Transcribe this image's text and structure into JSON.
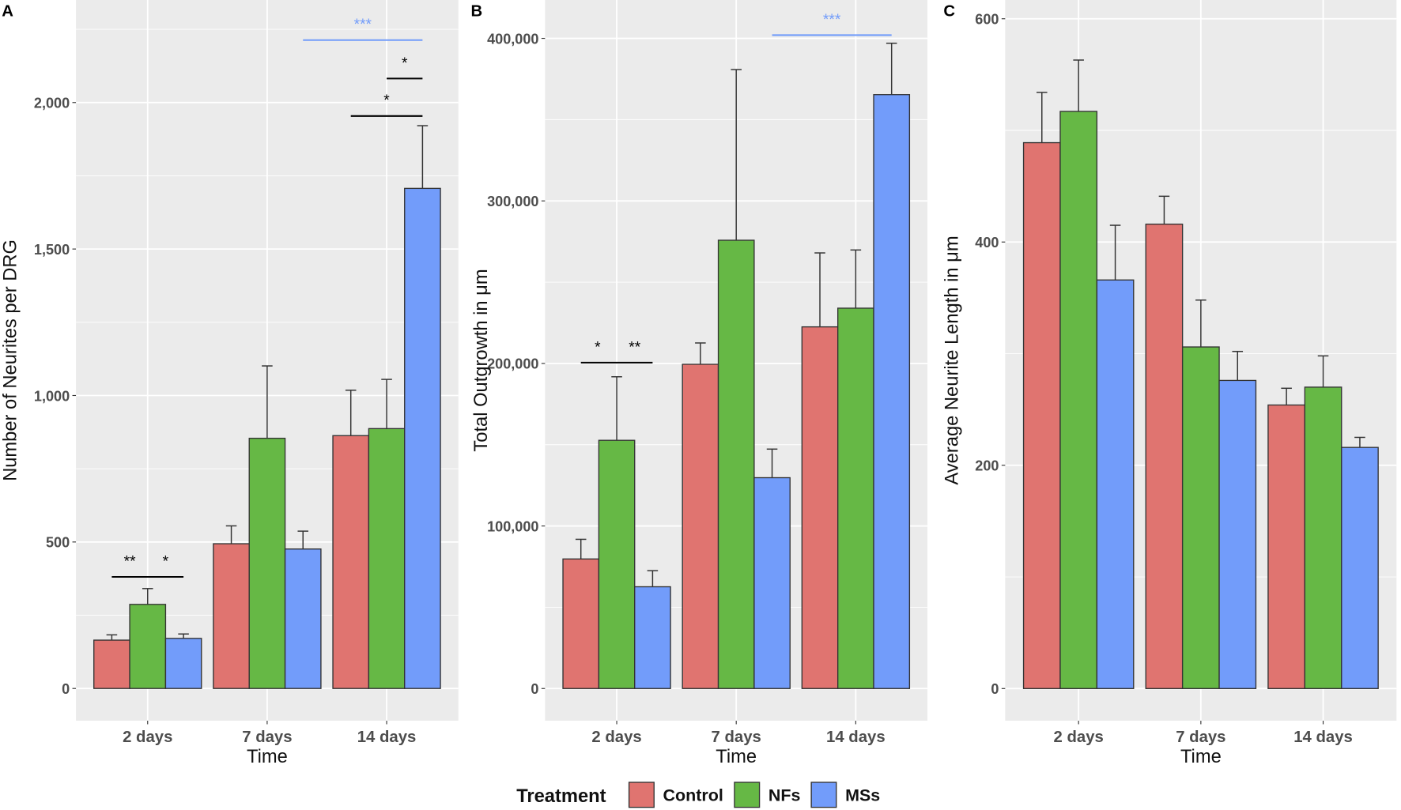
{
  "legend": {
    "title": "Treatment",
    "items": [
      {
        "label": "Control",
        "color": "#e07470"
      },
      {
        "label": "NFs",
        "color": "#66b845"
      },
      {
        "label": "MSs",
        "color": "#729cfa"
      }
    ]
  },
  "chart_data": [
    {
      "type": "bar",
      "panel": "A",
      "xlabel": "Time",
      "ylabel": "Number of Neurites per DRG",
      "categories": [
        "2 days",
        "7 days",
        "14 days"
      ],
      "ylim": [
        -110,
        2350
      ],
      "yticks": [
        0,
        500,
        1000,
        1500,
        2000
      ],
      "ytick_labels": [
        "0",
        "500",
        "1,000",
        "1,500",
        "2,000"
      ],
      "series": [
        {
          "name": "Control",
          "values": [
            165,
            494,
            863
          ],
          "err_upper": [
            183,
            555,
            1018
          ]
        },
        {
          "name": "NFs",
          "values": [
            287,
            854,
            887
          ],
          "err_upper": [
            341,
            1101,
            1055
          ]
        },
        {
          "name": "MSs",
          "values": [
            171,
            476,
            1707
          ],
          "err_upper": [
            186,
            537,
            1921
          ]
        }
      ],
      "significance": [
        {
          "x1": 0.7,
          "x2": 1.3,
          "y": 381,
          "color": "#000000",
          "labels": [
            {
              "x": 0.85,
              "text": "**"
            },
            {
              "x": 1.15,
              "text": "*"
            }
          ]
        },
        {
          "x1": 2.7,
          "x2": 3.3,
          "y": 1954,
          "color": "#000000",
          "labels": [
            {
              "x": 3.0,
              "text": "*"
            }
          ]
        },
        {
          "x1": 3.0,
          "x2": 3.3,
          "y": 2082,
          "color": "#000000",
          "labels": [
            {
              "x": 3.15,
              "text": "*"
            }
          ]
        },
        {
          "x1": 2.3,
          "x2": 3.3,
          "y": 2213,
          "color": "#729cfa",
          "labels": [
            {
              "x": 2.8,
              "text": "***"
            }
          ]
        }
      ]
    },
    {
      "type": "bar",
      "panel": "B",
      "xlabel": "Time",
      "ylabel": "Total Outgrowth in μm",
      "categories": [
        "2 days",
        "7 days",
        "14 days"
      ],
      "ylim": [
        -19800,
        423600
      ],
      "yticks": [
        0,
        100000,
        200000,
        300000,
        400000
      ],
      "ytick_labels": [
        "0",
        "100,000",
        "200,000",
        "300,000",
        "400,000"
      ],
      "series": [
        {
          "name": "Control",
          "values": [
            79700,
            199500,
            222500
          ],
          "err_upper": [
            91800,
            212600,
            268000
          ]
        },
        {
          "name": "NFs",
          "values": [
            152700,
            275800,
            234000
          ],
          "err_upper": [
            191800,
            380800,
            269800
          ]
        },
        {
          "name": "MSs",
          "values": [
            62600,
            129700,
            365400
          ],
          "err_upper": [
            72500,
            147300,
            397000
          ]
        }
      ],
      "significance": [
        {
          "x1": 0.7,
          "x2": 1.3,
          "y": 200500,
          "color": "#000000",
          "labels": [
            {
              "x": 0.84,
              "text": "*"
            },
            {
              "x": 1.15,
              "text": "**"
            }
          ]
        },
        {
          "x1": 2.3,
          "x2": 3.3,
          "y": 402000,
          "color": "#729cfa",
          "labels": [
            {
              "x": 2.8,
              "text": "***"
            }
          ]
        }
      ]
    },
    {
      "type": "bar",
      "panel": "C",
      "xlabel": "Time",
      "ylabel": "Average Neurite Length in μm",
      "categories": [
        "2 days",
        "7 days",
        "14 days"
      ],
      "ylim": [
        -28.8,
        616.8
      ],
      "yticks": [
        0,
        200,
        400,
        600
      ],
      "ytick_labels": [
        "0",
        "200",
        "400",
        "600"
      ],
      "series": [
        {
          "name": "Control",
          "values": [
            489,
            416,
            254
          ],
          "err_upper": [
            534,
            441,
            269
          ]
        },
        {
          "name": "NFs",
          "values": [
            517,
            306,
            270
          ],
          "err_upper": [
            563,
            348,
            298
          ]
        },
        {
          "name": "MSs",
          "values": [
            366,
            276,
            216
          ],
          "err_upper": [
            415,
            302,
            225
          ]
        }
      ],
      "significance": []
    }
  ]
}
